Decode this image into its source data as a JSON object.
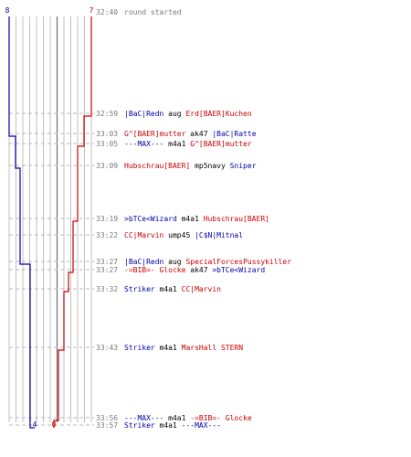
{
  "chart_data": {
    "type": "line",
    "title": "",
    "xlabel": "",
    "ylabel": "",
    "axis_top": {
      "left": "8",
      "right": "7"
    },
    "axis_bottom": {
      "blue_end": "4",
      "red_end": "0"
    },
    "colors": {
      "blue": "#0000aa",
      "red": "#cc0000",
      "grid": "#c0c0c0",
      "center": "#707070",
      "dash": "#bbbbbb",
      "time": "#7a7a7a"
    },
    "series": [
      {
        "name": "",
        "color": "#0000aa",
        "start": 8,
        "steps": [
          7,
          6,
          5,
          4
        ]
      },
      {
        "name": "",
        "color": "#cc0000",
        "start": 7,
        "steps": [
          6,
          5,
          4,
          3,
          2,
          1,
          0
        ]
      }
    ],
    "events": [
      {
        "time": "32:40",
        "parts": [
          {
            "text": "round started",
            "color": "gray"
          }
        ]
      },
      {
        "time": "32:59",
        "parts": [
          {
            "text": "|BaC|Redn",
            "color": "blue"
          },
          {
            "text": " aug ",
            "color": "black"
          },
          {
            "text": "Erd[BAER]Kuchen",
            "color": "red"
          }
        ]
      },
      {
        "time": "33:03",
        "parts": [
          {
            "text": "G^[BAER]mutter",
            "color": "red"
          },
          {
            "text": " ak47 ",
            "color": "black"
          },
          {
            "text": "|BaC|Ratte",
            "color": "blue"
          }
        ]
      },
      {
        "time": "33:05",
        "parts": [
          {
            "text": "---MAX---",
            "color": "blue"
          },
          {
            "text": " m4a1 ",
            "color": "black"
          },
          {
            "text": "G^[BAER]mutter",
            "color": "red"
          }
        ]
      },
      {
        "time": "33:09",
        "parts": [
          {
            "text": "Hubschrau[BAER]",
            "color": "red"
          },
          {
            "text": " mp5navy ",
            "color": "black"
          },
          {
            "text": "Sniper",
            "color": "blue"
          }
        ]
      },
      {
        "time": "33:19",
        "parts": [
          {
            "text": ">bTCe<Wizard",
            "color": "blue"
          },
          {
            "text": " m4a1 ",
            "color": "black"
          },
          {
            "text": "Hubschrau[BAER]",
            "color": "red"
          }
        ]
      },
      {
        "time": "33:22",
        "parts": [
          {
            "text": "CC|Marvin",
            "color": "red"
          },
          {
            "text": " ump45 ",
            "color": "black"
          },
          {
            "text": "|C$N|Mitnal",
            "color": "blue"
          }
        ]
      },
      {
        "time": "33:27",
        "parts": [
          {
            "text": "|BaC|Redn",
            "color": "blue"
          },
          {
            "text": " aug ",
            "color": "black"
          },
          {
            "text": "SpecialForcesPussykiller",
            "color": "red"
          }
        ]
      },
      {
        "time": "33:27",
        "parts": [
          {
            "text": "-=BIB=- Glocke",
            "color": "red"
          },
          {
            "text": " ak47 ",
            "color": "black"
          },
          {
            "text": ">bTCe<Wizard",
            "color": "blue"
          }
        ]
      },
      {
        "time": "33:32",
        "parts": [
          {
            "text": "Striker",
            "color": "blue"
          },
          {
            "text": " m4a1 ",
            "color": "black"
          },
          {
            "text": "CC|Marvin",
            "color": "red"
          }
        ]
      },
      {
        "time": "33:43",
        "parts": [
          {
            "text": "Striker",
            "color": "blue"
          },
          {
            "text": " m4a1 ",
            "color": "black"
          },
          {
            "text": "MarsHall STERN",
            "color": "red"
          }
        ]
      },
      {
        "time": "33:56",
        "parts": [
          {
            "text": "---MAX---",
            "color": "blue"
          },
          {
            "text": " m4a1 ",
            "color": "black"
          },
          {
            "text": "-=BIB=- Glocke",
            "color": "red"
          }
        ]
      },
      {
        "time": "33:57",
        "parts": [
          {
            "text": "Striker",
            "color": "blue"
          },
          {
            "text": " m4a1 ",
            "color": "black"
          },
          {
            "text": "---MAX---",
            "color": "blue"
          }
        ]
      }
    ]
  }
}
